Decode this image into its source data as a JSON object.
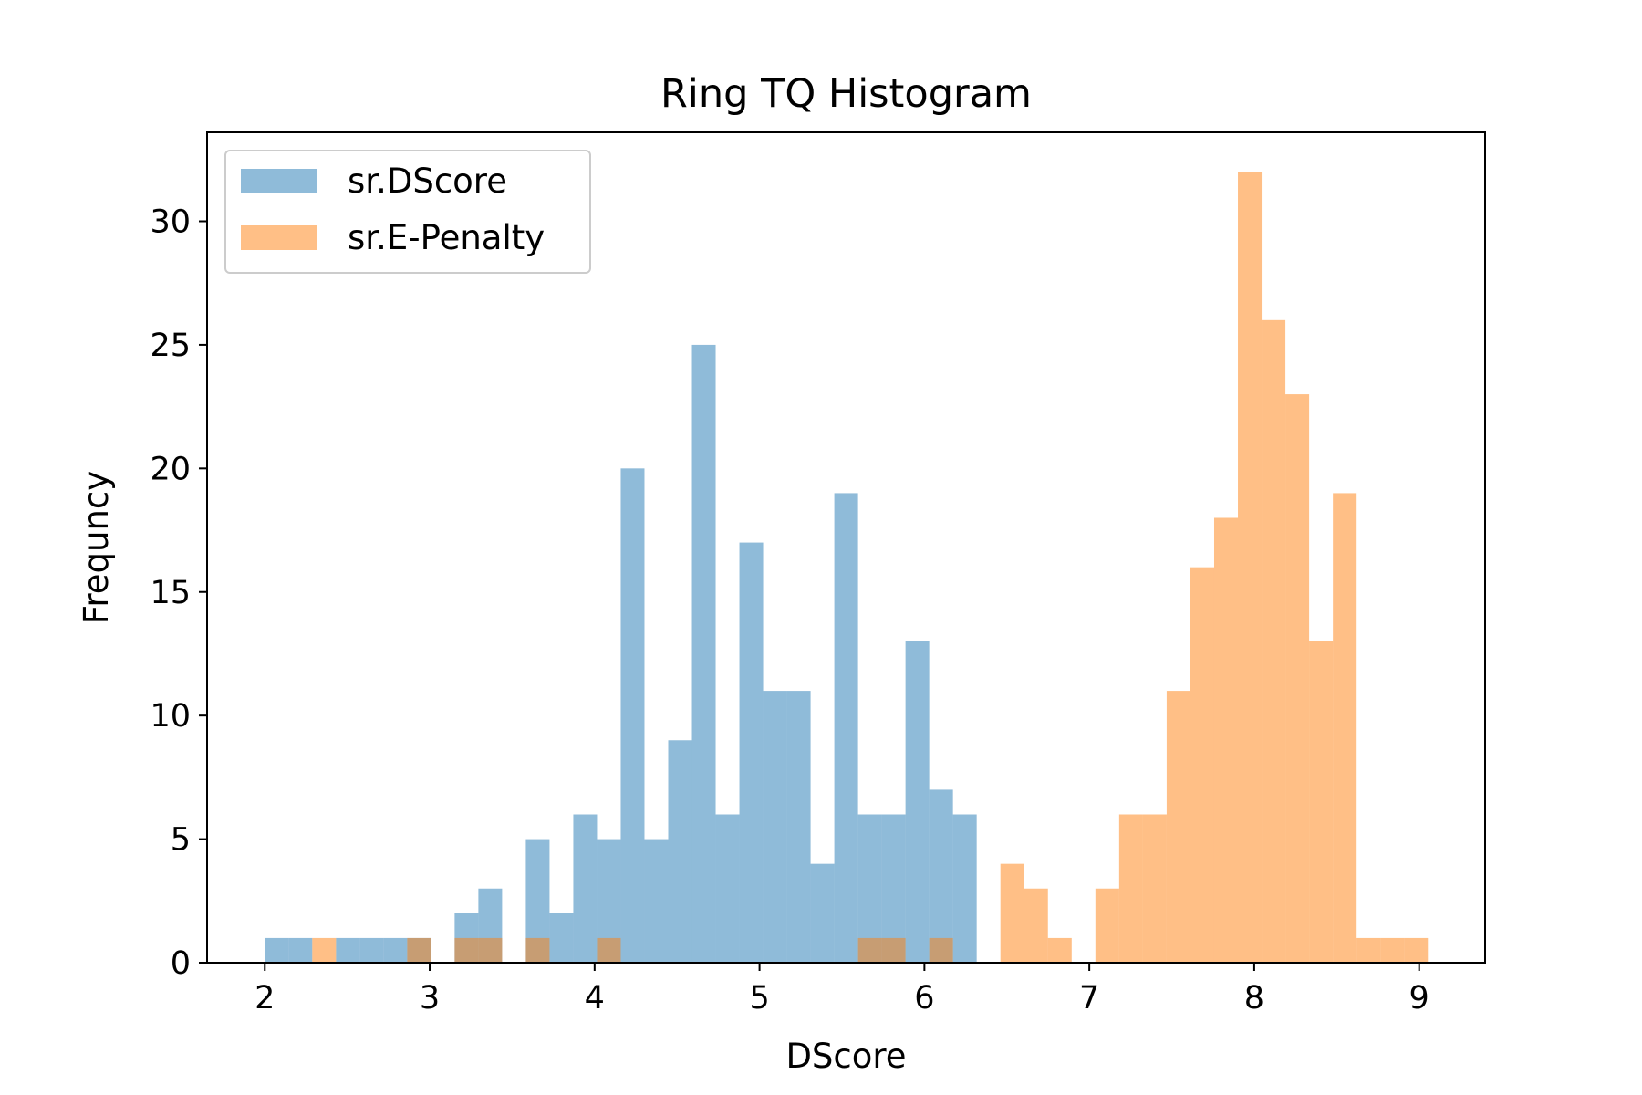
{
  "chart_data": {
    "type": "bar",
    "title": "Ring TQ Histogram",
    "xlabel": "DScore",
    "ylabel": "Frequncy",
    "xlim": [
      1.65,
      9.4
    ],
    "ylim": [
      0,
      33.6
    ],
    "xticks": [
      2,
      3,
      4,
      5,
      6,
      7,
      8,
      9
    ],
    "yticks": [
      0,
      5,
      10,
      15,
      20,
      25,
      30
    ],
    "grid": false,
    "legend_position": "top-left",
    "bar_opacity": 0.5,
    "series": [
      {
        "name": "sr.DScore",
        "color": "#1f77b4",
        "bins": [
          {
            "x0": 2.0,
            "x1": 2.1439,
            "count": 1
          },
          {
            "x0": 2.1439,
            "x1": 2.2878,
            "count": 1
          },
          {
            "x0": 2.2878,
            "x1": 2.4317,
            "count": 0
          },
          {
            "x0": 2.4317,
            "x1": 2.5756,
            "count": 1
          },
          {
            "x0": 2.5756,
            "x1": 2.7195,
            "count": 1
          },
          {
            "x0": 2.7195,
            "x1": 2.8634,
            "count": 1
          },
          {
            "x0": 2.8634,
            "x1": 3.0073,
            "count": 1
          },
          {
            "x0": 3.0073,
            "x1": 3.1512,
            "count": 0
          },
          {
            "x0": 3.1512,
            "x1": 3.2951,
            "count": 2
          },
          {
            "x0": 3.2951,
            "x1": 3.439,
            "count": 3
          },
          {
            "x0": 3.439,
            "x1": 3.5829,
            "count": 0
          },
          {
            "x0": 3.5829,
            "x1": 3.7268,
            "count": 5
          },
          {
            "x0": 3.7268,
            "x1": 3.8707,
            "count": 2
          },
          {
            "x0": 3.8707,
            "x1": 4.0146,
            "count": 6
          },
          {
            "x0": 4.0146,
            "x1": 4.1585,
            "count": 5
          },
          {
            "x0": 4.1585,
            "x1": 4.3024,
            "count": 20
          },
          {
            "x0": 4.3024,
            "x1": 4.4463,
            "count": 5
          },
          {
            "x0": 4.4463,
            "x1": 4.5902,
            "count": 9
          },
          {
            "x0": 4.5902,
            "x1": 4.7341,
            "count": 25
          },
          {
            "x0": 4.7341,
            "x1": 4.878,
            "count": 6
          },
          {
            "x0": 4.878,
            "x1": 5.0219,
            "count": 17
          },
          {
            "x0": 5.0219,
            "x1": 5.1658,
            "count": 11
          },
          {
            "x0": 5.1658,
            "x1": 5.3097,
            "count": 11
          },
          {
            "x0": 5.3097,
            "x1": 5.4536,
            "count": 4
          },
          {
            "x0": 5.4536,
            "x1": 5.5975,
            "count": 19
          },
          {
            "x0": 5.5975,
            "x1": 5.7414,
            "count": 6
          },
          {
            "x0": 5.7414,
            "x1": 5.8853,
            "count": 6
          },
          {
            "x0": 5.8853,
            "x1": 6.0292,
            "count": 13
          },
          {
            "x0": 6.0292,
            "x1": 6.1731,
            "count": 7
          },
          {
            "x0": 6.1731,
            "x1": 6.317,
            "count": 6
          }
        ]
      },
      {
        "name": "sr.E-Penalty",
        "color": "#ff7f0e",
        "bins": [
          {
            "x0": 2.2878,
            "x1": 2.4317,
            "count": 1
          },
          {
            "x0": 2.8634,
            "x1": 3.0073,
            "count": 1
          },
          {
            "x0": 3.1512,
            "x1": 3.2951,
            "count": 1
          },
          {
            "x0": 3.2951,
            "x1": 3.439,
            "count": 1
          },
          {
            "x0": 3.5829,
            "x1": 3.7268,
            "count": 1
          },
          {
            "x0": 4.0146,
            "x1": 4.1585,
            "count": 1
          },
          {
            "x0": 5.5975,
            "x1": 5.7414,
            "count": 1
          },
          {
            "x0": 5.7414,
            "x1": 5.8853,
            "count": 1
          },
          {
            "x0": 6.0292,
            "x1": 6.1731,
            "count": 1
          },
          {
            "x0": 6.461,
            "x1": 6.605,
            "count": 4
          },
          {
            "x0": 6.605,
            "x1": 6.749,
            "count": 3
          },
          {
            "x0": 6.749,
            "x1": 6.893,
            "count": 1
          },
          {
            "x0": 7.037,
            "x1": 7.181,
            "count": 3
          },
          {
            "x0": 7.181,
            "x1": 7.325,
            "count": 6
          },
          {
            "x0": 7.325,
            "x1": 7.469,
            "count": 6
          },
          {
            "x0": 7.469,
            "x1": 7.613,
            "count": 11
          },
          {
            "x0": 7.613,
            "x1": 7.757,
            "count": 16
          },
          {
            "x0": 7.757,
            "x1": 7.901,
            "count": 18
          },
          {
            "x0": 7.901,
            "x1": 8.045,
            "count": 32
          },
          {
            "x0": 8.045,
            "x1": 8.189,
            "count": 26
          },
          {
            "x0": 8.189,
            "x1": 8.333,
            "count": 23
          },
          {
            "x0": 8.333,
            "x1": 8.477,
            "count": 13
          },
          {
            "x0": 8.477,
            "x1": 8.621,
            "count": 19
          },
          {
            "x0": 8.621,
            "x1": 8.765,
            "count": 1
          },
          {
            "x0": 8.765,
            "x1": 8.909,
            "count": 1
          },
          {
            "x0": 8.909,
            "x1": 9.053,
            "count": 1
          }
        ]
      }
    ]
  }
}
